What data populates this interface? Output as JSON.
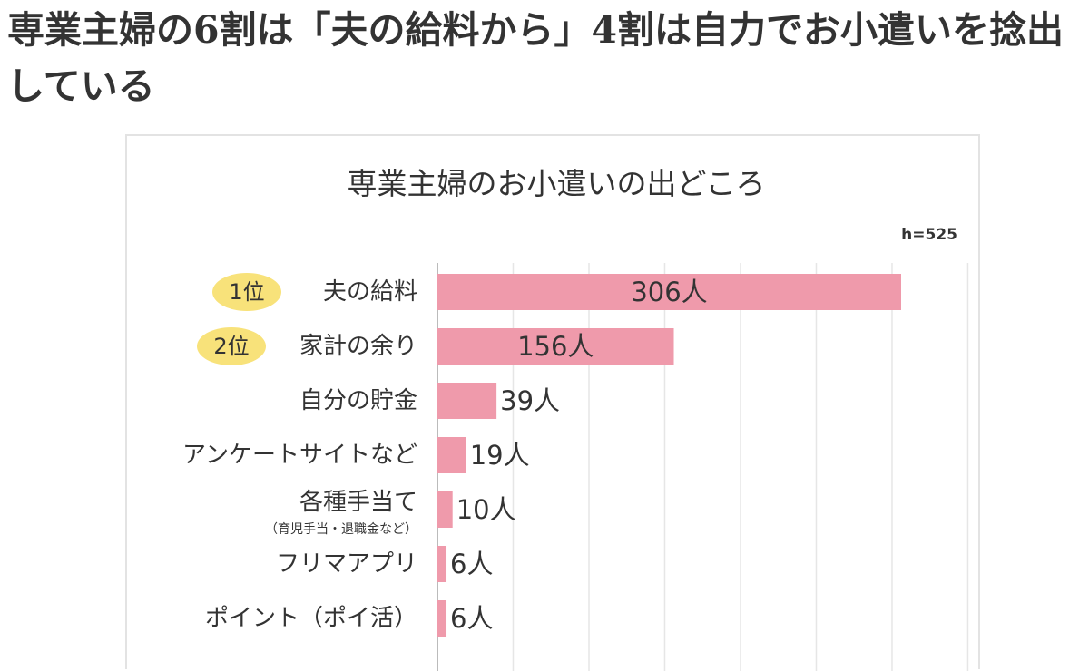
{
  "article": {
    "heading": "専業主婦の6割は「夫の給料から」4割は自力でお小遣いを捻出している"
  },
  "chart_data": {
    "type": "bar",
    "orientation": "horizontal",
    "title": "専業主婦のお小遣いの出どころ",
    "sample_size": "h=525",
    "categories": [
      "夫の給料",
      "家計の余り",
      "自分の貯金",
      "アンケートサイトなど",
      "各種手当て",
      "フリマアプリ",
      "ポイント（ポイ活）"
    ],
    "category_notes": [
      "",
      "",
      "",
      "",
      "（育児手当・退職金など）",
      "",
      ""
    ],
    "rank_badges": [
      "1位",
      "2位",
      "",
      "",
      "",
      "",
      ""
    ],
    "values": [
      306,
      156,
      39,
      19,
      10,
      6,
      6
    ],
    "value_labels": [
      "306人",
      "156人",
      "39人",
      "19人",
      "10人",
      "6人",
      "6人"
    ],
    "unit": "人",
    "xlim": [
      0,
      350
    ],
    "grid": true,
    "colors": {
      "bar": "#ef9aab",
      "badge": "#f8e27a",
      "grid": "#e6e6e6",
      "axis": "#bbbbbb",
      "text": "#333333"
    }
  }
}
